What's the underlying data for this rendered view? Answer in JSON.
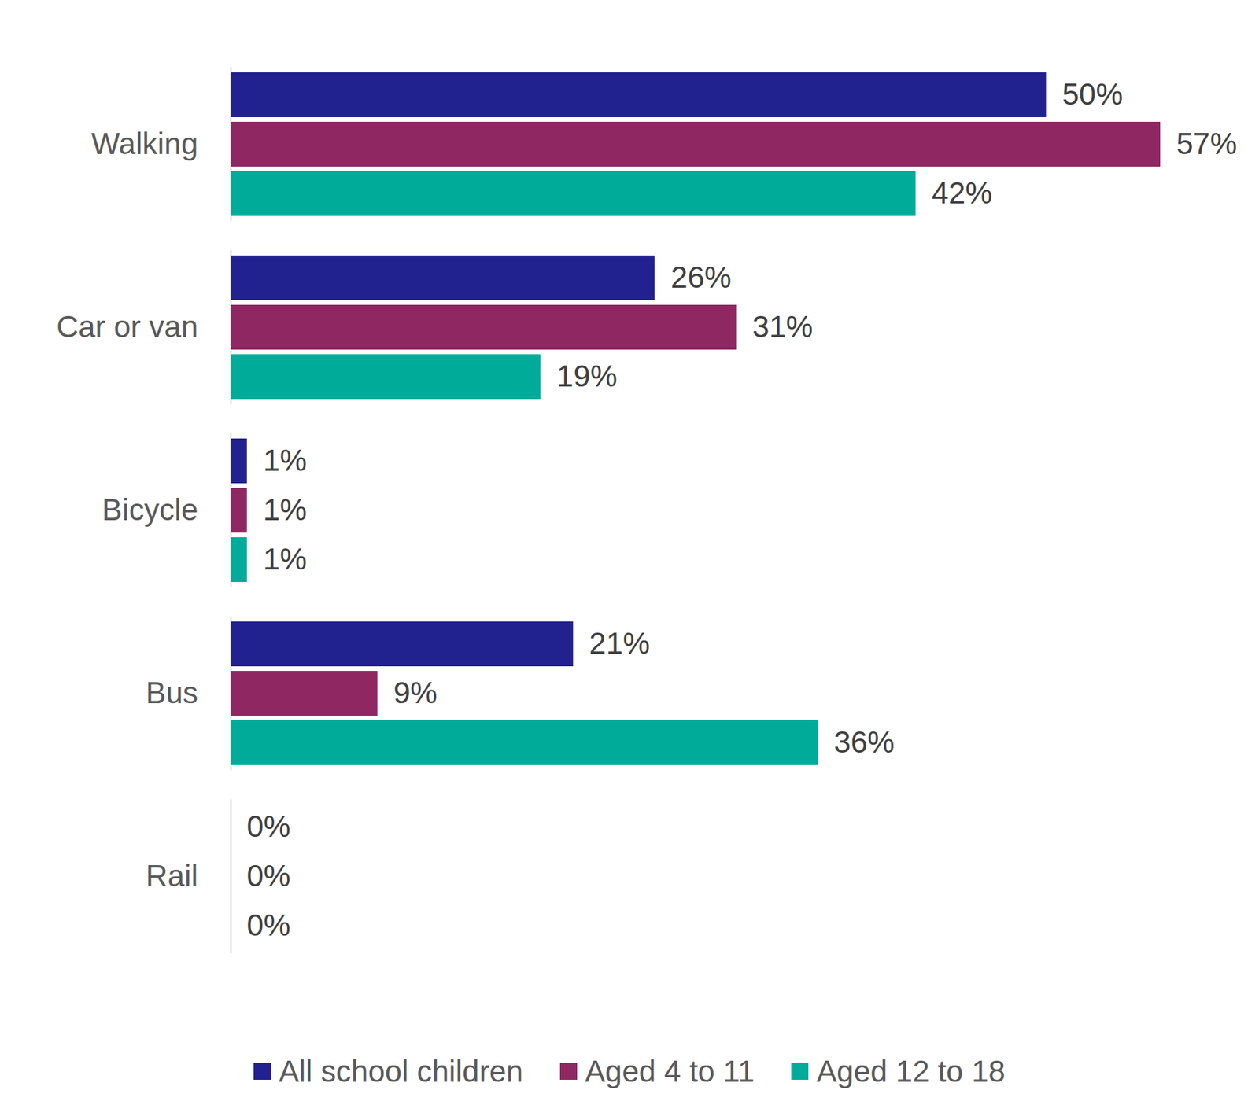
{
  "chart_data": {
    "type": "bar",
    "orientation": "horizontal",
    "categories": [
      "Walking",
      "Car or van",
      "Bicycle",
      "Bus",
      "Rail"
    ],
    "series": [
      {
        "name": "All school children",
        "color": "#21218f",
        "values": [
          50,
          26,
          1,
          21,
          0
        ],
        "value_labels": [
          "50%",
          "26%",
          "1%",
          "21%",
          "0%"
        ]
      },
      {
        "name": "Aged 4 to 11",
        "color": "#8f2762",
        "values": [
          57,
          31,
          1,
          9,
          0
        ],
        "value_labels": [
          "57%",
          "31%",
          "1%",
          "9%",
          "0%"
        ]
      },
      {
        "name": "Aged 12 to 18",
        "color": "#00ab9a",
        "values": [
          42,
          19,
          1,
          36,
          0
        ],
        "value_labels": [
          "42%",
          "19%",
          "1%",
          "36%",
          "0%"
        ]
      }
    ],
    "xlim": [
      0,
      57
    ],
    "data_labels": true,
    "tick_labels": "y",
    "legend": "bottom",
    "grid": false
  }
}
